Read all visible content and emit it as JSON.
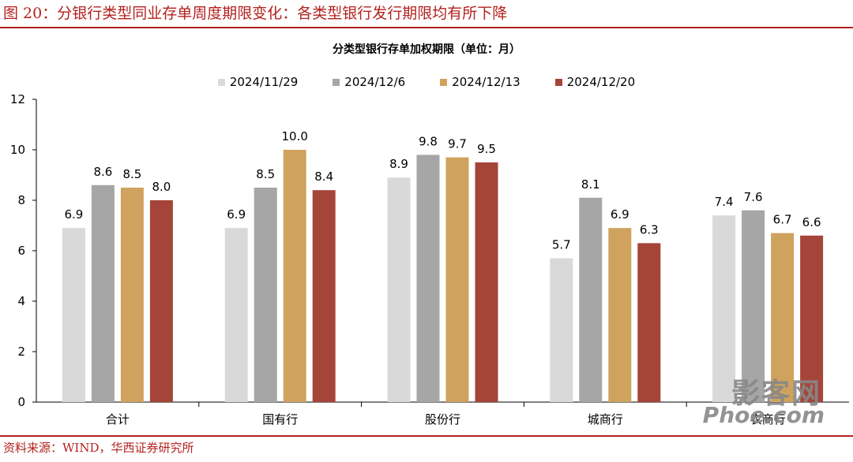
{
  "figure_title": "图 20：分银行类型同业存单周度期限变化：各类型银行发行期限均有所下降",
  "source": "资料来源：WIND，华西证券研究所",
  "watermark": {
    "line1": "影客网",
    "line2": "Phoe.com"
  },
  "chart_data": {
    "type": "bar",
    "title": "分类型银行存单加权期限（单位：月）",
    "categories": [
      "合计",
      "国有行",
      "股份行",
      "城商行",
      "农商行"
    ],
    "series": [
      {
        "name": "2024/11/29",
        "color": "#d9d9d9",
        "values": [
          6.9,
          6.9,
          8.9,
          5.7,
          7.4
        ]
      },
      {
        "name": "2024/12/6",
        "color": "#a6a6a6",
        "values": [
          8.6,
          8.5,
          9.8,
          8.1,
          7.6
        ]
      },
      {
        "name": "2024/12/13",
        "color": "#cfa35e",
        "values": [
          8.5,
          10.0,
          9.7,
          6.9,
          6.7
        ]
      },
      {
        "name": "2024/12/20",
        "color": "#a5453a",
        "values": [
          8.0,
          8.4,
          9.5,
          6.3,
          6.6
        ]
      }
    ],
    "ylim": [
      0,
      12
    ],
    "yticks": [
      0,
      2,
      4,
      6,
      8,
      10,
      12
    ],
    "legend_position": "top",
    "grid": false
  }
}
